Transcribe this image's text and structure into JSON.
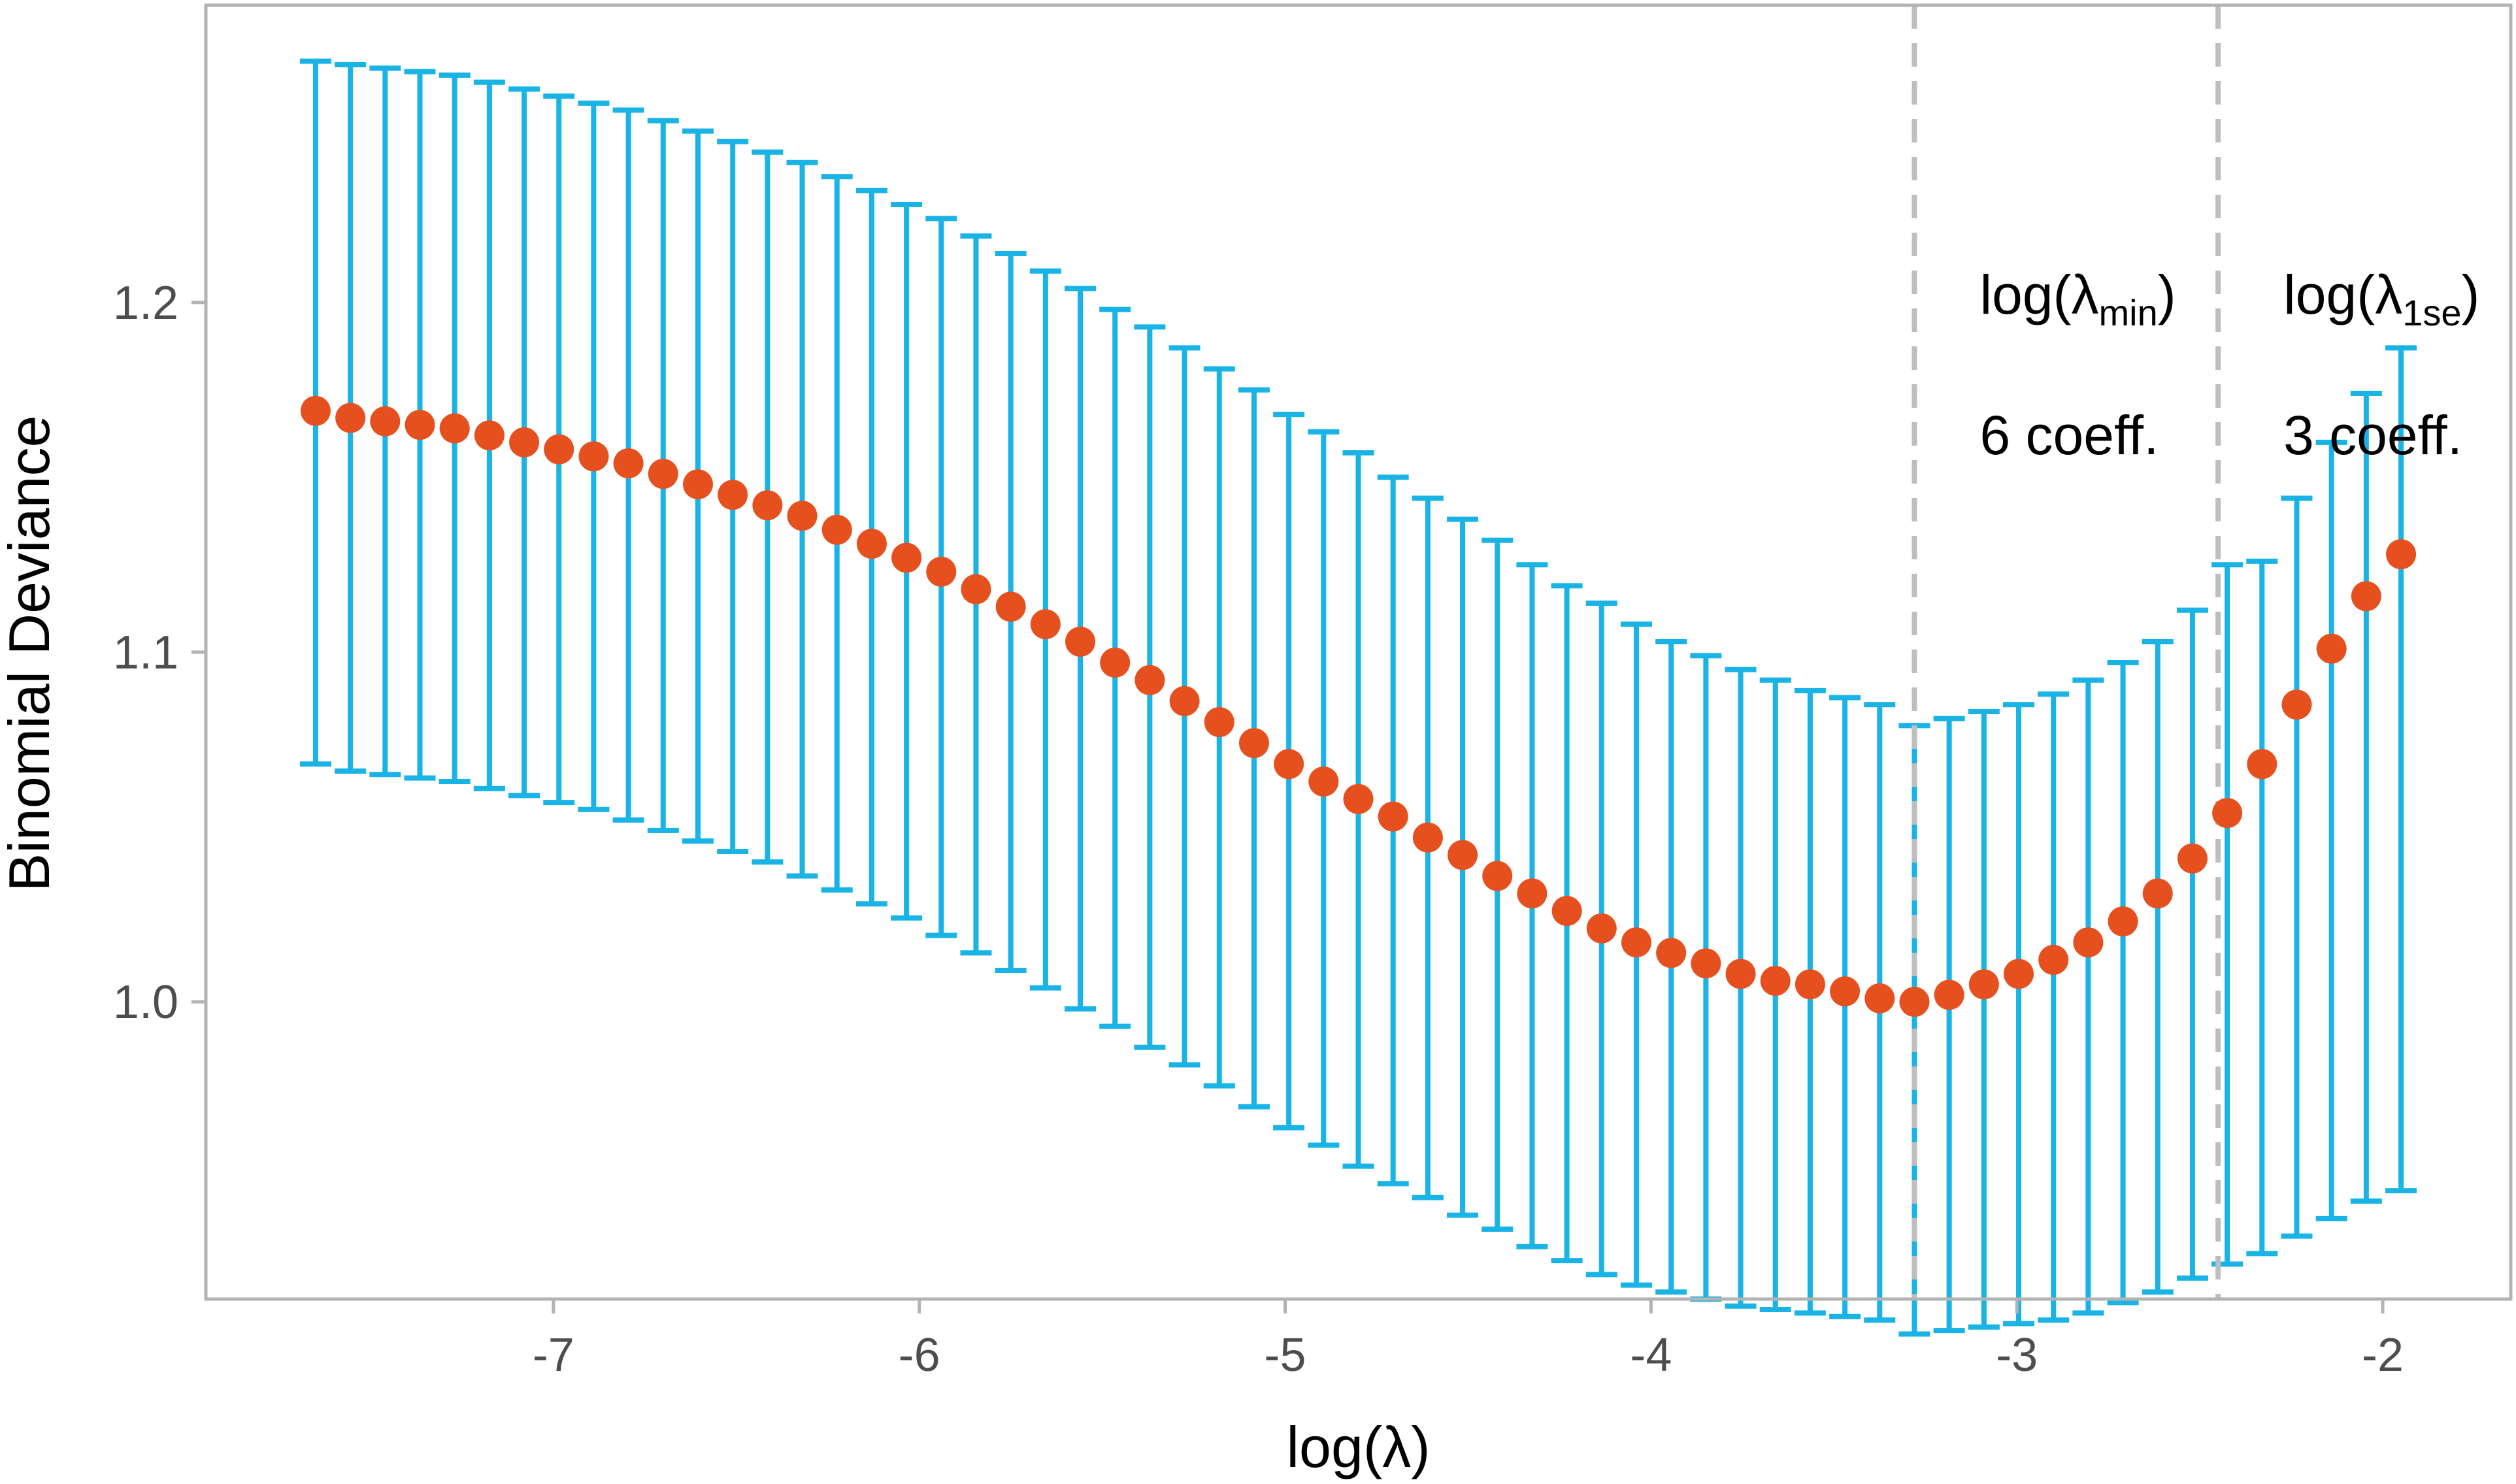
{
  "chart_data": {
    "type": "scatter",
    "xlabel": "log(λ)",
    "ylabel": "Binomial Deviance",
    "xlim": [
      -7.95,
      -1.65
    ],
    "ylim": [
      0.915,
      1.285
    ],
    "xticks": [
      -7,
      -6,
      -5,
      -4,
      -3,
      -2
    ],
    "xtick_labels": [
      "-7",
      "-6",
      "-5",
      "-4",
      "-3",
      "-2"
    ],
    "yticks": [
      1.0,
      1.1,
      1.2
    ],
    "ytick_labels": [
      "1.0",
      "1.1",
      "1.2"
    ],
    "grid": false,
    "series": [
      {
        "x": [
          -7.65,
          -7.555,
          -7.46,
          -7.365,
          -7.27,
          -7.175,
          -7.08,
          -6.985,
          -6.89,
          -6.795,
          -6.7,
          -6.605,
          -6.51,
          -6.415,
          -6.32,
          -6.225,
          -6.13,
          -6.035,
          -5.94,
          -5.845,
          -5.75,
          -5.655,
          -5.56,
          -5.465,
          -5.37,
          -5.275,
          -5.18,
          -5.085,
          -4.99,
          -4.895,
          -4.8,
          -4.705,
          -4.61,
          -4.515,
          -4.42,
          -4.325,
          -4.23,
          -4.135,
          -4.04,
          -3.945,
          -3.85,
          -3.755,
          -3.66,
          -3.565,
          -3.47,
          -3.375,
          -3.28,
          -3.185,
          -3.09,
          -2.995,
          -2.9,
          -2.805,
          -2.71,
          -2.615,
          -2.52,
          -2.425,
          -2.33,
          -2.235,
          -2.14,
          -2.045,
          -1.95
        ],
        "y": [
          1.169,
          1.167,
          1.166,
          1.165,
          1.164,
          1.162,
          1.16,
          1.158,
          1.156,
          1.154,
          1.151,
          1.148,
          1.145,
          1.142,
          1.139,
          1.135,
          1.131,
          1.127,
          1.123,
          1.118,
          1.113,
          1.108,
          1.103,
          1.097,
          1.092,
          1.086,
          1.08,
          1.074,
          1.068,
          1.063,
          1.058,
          1.053,
          1.047,
          1.042,
          1.036,
          1.031,
          1.026,
          1.021,
          1.017,
          1.014,
          1.011,
          1.008,
          1.006,
          1.005,
          1.003,
          1.001,
          1.0,
          1.002,
          1.005,
          1.008,
          1.012,
          1.017,
          1.023,
          1.031,
          1.041,
          1.054,
          1.068,
          1.085,
          1.101,
          1.116,
          1.128
        ],
        "ymin": [
          1.068,
          1.066,
          1.065,
          1.064,
          1.063,
          1.061,
          1.059,
          1.057,
          1.055,
          1.052,
          1.049,
          1.046,
          1.043,
          1.04,
          1.036,
          1.032,
          1.028,
          1.024,
          1.019,
          1.014,
          1.009,
          1.004,
          0.998,
          0.993,
          0.987,
          0.982,
          0.976,
          0.97,
          0.964,
          0.959,
          0.953,
          0.948,
          0.944,
          0.939,
          0.935,
          0.93,
          0.926,
          0.922,
          0.919,
          0.917,
          0.915,
          0.913,
          0.912,
          0.911,
          0.91,
          0.909,
          0.905,
          0.906,
          0.907,
          0.908,
          0.909,
          0.911,
          0.914,
          0.917,
          0.921,
          0.925,
          0.928,
          0.933,
          0.938,
          0.943,
          0.946
        ]
      }
    ],
    "error_bar_top": [
      1.269,
      1.268,
      1.267,
      1.266,
      1.265,
      1.263,
      1.261,
      1.259,
      1.257,
      1.255,
      1.252,
      1.249,
      1.246,
      1.243,
      1.24,
      1.236,
      1.232,
      1.228,
      1.224,
      1.219,
      1.214,
      1.209,
      1.204,
      1.198,
      1.193,
      1.187,
      1.181,
      1.175,
      1.168,
      1.163,
      1.157,
      1.15,
      1.144,
      1.138,
      1.132,
      1.125,
      1.119,
      1.114,
      1.108,
      1.103,
      1.099,
      1.095,
      1.092,
      1.089,
      1.087,
      1.085,
      1.079,
      1.081,
      1.083,
      1.085,
      1.088,
      1.092,
      1.097,
      1.103,
      1.112,
      1.125,
      1.126,
      1.144,
      1.16,
      1.174,
      1.187
    ],
    "vlines": [
      {
        "x": -3.28,
        "label_prefix": "log(λ",
        "label_sub": "min",
        "label_suffix": ")",
        "coeff_label": "6 coeff."
      },
      {
        "x": -2.45,
        "label_prefix": "log(λ",
        "label_sub": "1se",
        "label_suffix": ")",
        "coeff_label": "3 coeff."
      }
    ],
    "colors": {
      "points": "#E6501E",
      "error_bars": "#1AB3E6",
      "vlines": "#BEBEBE",
      "panel_border": "#B3B3B3",
      "tick_text": "#4D4D4D"
    }
  }
}
